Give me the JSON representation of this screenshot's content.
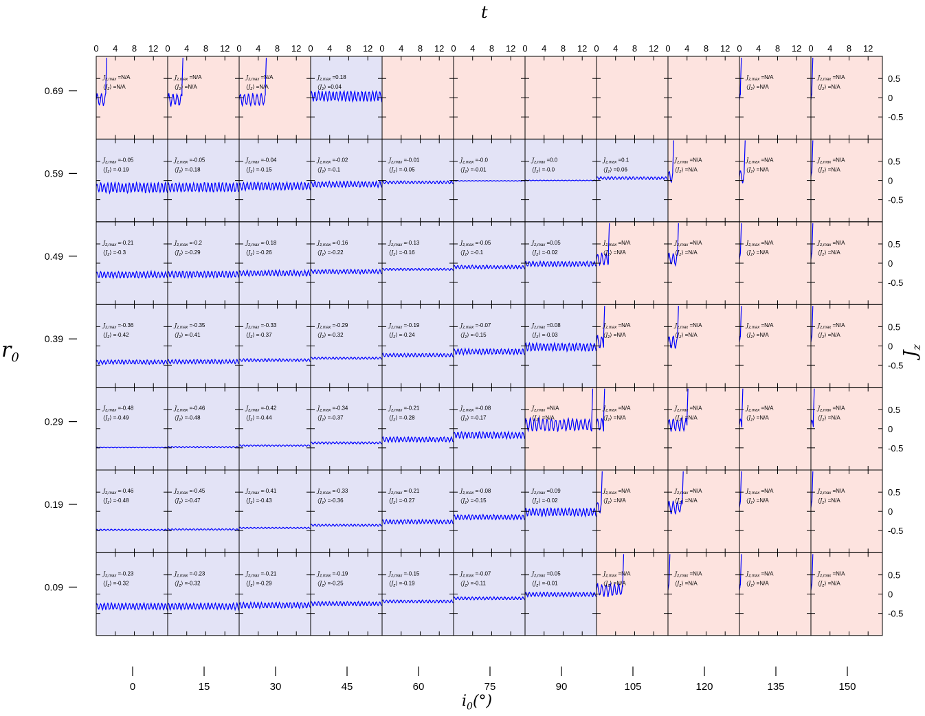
{
  "axes": {
    "top_label": "t",
    "left_label": "r",
    "left_label_sub": "0",
    "right_label": "J",
    "right_label_sub": "z",
    "bottom_label": "i",
    "bottom_label_sub": "0",
    "bottom_label_unit": "(°)",
    "t_ticks": [
      "0",
      "4",
      "8",
      "12"
    ],
    "jz_ticks": [
      "0.5",
      "0",
      "-0.5"
    ]
  },
  "colors": {
    "stable": "#e3e3f6",
    "unstable": "#fde3df",
    "line": "#0000ff",
    "frame": "#000000"
  },
  "chart_data": {
    "type": "line",
    "description_grid": "small multiples of Jz(t), rows r0, columns i0",
    "x_range": [
      0,
      15
    ],
    "y_range": [
      -1,
      1
    ],
    "t_ticks": [
      0,
      4,
      8,
      12
    ],
    "jz_ticks": [
      0.5,
      0,
      -0.5
    ],
    "i0_values": [
      "0",
      "15",
      "30",
      "45",
      "60",
      "75",
      "90",
      "105",
      "120",
      "135",
      "150"
    ],
    "r0_values": [
      "0.69",
      "0.59",
      "0.49",
      "0.39",
      "0.29",
      "0.19",
      "0.09"
    ],
    "jzmax_prefix": "J",
    "jzmax_sub": "z,max",
    "jzavg_prefix": "⟨J",
    "jzavg_sub": "z",
    "jzavg_suffix": "⟩",
    "eq": " =",
    "cells": [
      [
        {
          "stable": false,
          "jmax": "N/A",
          "javg": "N/A"
        },
        {
          "stable": false,
          "jmax": "N/A",
          "javg": "N/A"
        },
        {
          "stable": false,
          "jmax": "N/A",
          "javg": "N/A"
        },
        {
          "stable": true,
          "jmax": "0.18",
          "javg": "0.04"
        },
        {
          "stable": false,
          "jmax": "",
          "javg": ""
        },
        {
          "stable": false,
          "jmax": "",
          "javg": ""
        },
        {
          "stable": false,
          "jmax": "",
          "javg": ""
        },
        {
          "stable": false,
          "jmax": "",
          "javg": ""
        },
        {
          "stable": false,
          "jmax": "",
          "javg": ""
        },
        {
          "stable": false,
          "jmax": "N/A",
          "javg": "N/A"
        },
        {
          "stable": false,
          "jmax": "N/A",
          "javg": "N/A"
        }
      ],
      [
        {
          "stable": true,
          "jmax": "-0.05",
          "javg": "-0.19"
        },
        {
          "stable": true,
          "jmax": "-0.05",
          "javg": "-0.18"
        },
        {
          "stable": true,
          "jmax": "-0.04",
          "javg": "-0.15"
        },
        {
          "stable": true,
          "jmax": "-0.02",
          "javg": "-0.1"
        },
        {
          "stable": true,
          "jmax": "-0.01",
          "javg": "-0.05"
        },
        {
          "stable": true,
          "jmax": "-0.0",
          "javg": "-0.01"
        },
        {
          "stable": true,
          "jmax": "0.0",
          "javg": "-0.0"
        },
        {
          "stable": true,
          "jmax": "0.1",
          "javg": "0.06"
        },
        {
          "stable": false,
          "jmax": "N/A",
          "javg": "N/A"
        },
        {
          "stable": false,
          "jmax": "N/A",
          "javg": "N/A"
        },
        {
          "stable": false,
          "jmax": "N/A",
          "javg": "N/A"
        }
      ],
      [
        {
          "stable": true,
          "jmax": "-0.21",
          "javg": "-0.3"
        },
        {
          "stable": true,
          "jmax": "-0.2",
          "javg": "-0.29"
        },
        {
          "stable": true,
          "jmax": "-0.18",
          "javg": "-0.26"
        },
        {
          "stable": true,
          "jmax": "-0.16",
          "javg": "-0.22"
        },
        {
          "stable": true,
          "jmax": "-0.13",
          "javg": "-0.16"
        },
        {
          "stable": true,
          "jmax": "-0.05",
          "javg": "-0.1"
        },
        {
          "stable": true,
          "jmax": "0.05",
          "javg": "-0.02"
        },
        {
          "stable": false,
          "jmax": "N/A",
          "javg": "N/A"
        },
        {
          "stable": false,
          "jmax": "N/A",
          "javg": "N/A"
        },
        {
          "stable": false,
          "jmax": "N/A",
          "javg": "N/A"
        },
        {
          "stable": false,
          "jmax": "N/A",
          "javg": "N/A"
        }
      ],
      [
        {
          "stable": true,
          "jmax": "-0.36",
          "javg": "-0.42"
        },
        {
          "stable": true,
          "jmax": "-0.35",
          "javg": "-0.41"
        },
        {
          "stable": true,
          "jmax": "-0.33",
          "javg": "-0.37"
        },
        {
          "stable": true,
          "jmax": "-0.29",
          "javg": "-0.32"
        },
        {
          "stable": true,
          "jmax": "-0.19",
          "javg": "-0.24"
        },
        {
          "stable": true,
          "jmax": "-0.07",
          "javg": "-0.15"
        },
        {
          "stable": true,
          "jmax": "0.08",
          "javg": "-0.03"
        },
        {
          "stable": false,
          "jmax": "N/A",
          "javg": "N/A"
        },
        {
          "stable": false,
          "jmax": "N/A",
          "javg": "N/A"
        },
        {
          "stable": false,
          "jmax": "N/A",
          "javg": "N/A"
        },
        {
          "stable": false,
          "jmax": "N/A",
          "javg": "N/A"
        }
      ],
      [
        {
          "stable": true,
          "jmax": "-0.48",
          "javg": "-0.49"
        },
        {
          "stable": true,
          "jmax": "-0.46",
          "javg": "-0.48"
        },
        {
          "stable": true,
          "jmax": "-0.42",
          "javg": "-0.44"
        },
        {
          "stable": true,
          "jmax": "-0.34",
          "javg": "-0.37"
        },
        {
          "stable": true,
          "jmax": "-0.21",
          "javg": "-0.28"
        },
        {
          "stable": true,
          "jmax": "-0.08",
          "javg": "-0.17"
        },
        {
          "stable": false,
          "jmax": "N/A",
          "javg": "N/A"
        },
        {
          "stable": false,
          "jmax": "N/A",
          "javg": "N/A"
        },
        {
          "stable": false,
          "jmax": "N/A",
          "javg": "N/A"
        },
        {
          "stable": false,
          "jmax": "N/A",
          "javg": "N/A"
        },
        {
          "stable": false,
          "jmax": "N/A",
          "javg": "N/A"
        }
      ],
      [
        {
          "stable": true,
          "jmax": "-0.46",
          "javg": "-0.48"
        },
        {
          "stable": true,
          "jmax": "-0.45",
          "javg": "-0.47"
        },
        {
          "stable": true,
          "jmax": "-0.41",
          "javg": "-0.43"
        },
        {
          "stable": true,
          "jmax": "-0.33",
          "javg": "-0.36"
        },
        {
          "stable": true,
          "jmax": "-0.21",
          "javg": "-0.27"
        },
        {
          "stable": true,
          "jmax": "-0.08",
          "javg": "-0.15"
        },
        {
          "stable": true,
          "jmax": "0.09",
          "javg": "-0.02"
        },
        {
          "stable": false,
          "jmax": "N/A",
          "javg": "N/A"
        },
        {
          "stable": false,
          "jmax": "N/A",
          "javg": "N/A"
        },
        {
          "stable": false,
          "jmax": "N/A",
          "javg": "N/A"
        },
        {
          "stable": false,
          "jmax": "N/A",
          "javg": "N/A"
        }
      ],
      [
        {
          "stable": true,
          "jmax": "-0.23",
          "javg": "-0.32"
        },
        {
          "stable": true,
          "jmax": "-0.23",
          "javg": "-0.32"
        },
        {
          "stable": true,
          "jmax": "-0.21",
          "javg": "-0.29"
        },
        {
          "stable": true,
          "jmax": "-0.19",
          "javg": "-0.25"
        },
        {
          "stable": true,
          "jmax": "-0.15",
          "javg": "-0.19"
        },
        {
          "stable": true,
          "jmax": "-0.07",
          "javg": "-0.11"
        },
        {
          "stable": true,
          "jmax": "0.05",
          "javg": "-0.01"
        },
        {
          "stable": false,
          "jmax": "N/A",
          "javg": "N/A"
        },
        {
          "stable": false,
          "jmax": "N/A",
          "javg": "N/A"
        },
        {
          "stable": false,
          "jmax": "N/A",
          "javg": "N/A"
        },
        {
          "stable": false,
          "jmax": "N/A",
          "javg": "N/A"
        }
      ]
    ],
    "escape_time": [
      [
        2,
        3,
        5.5,
        null,
        null,
        null,
        null,
        null,
        null,
        0.2,
        0.2
      ],
      [
        null,
        null,
        null,
        null,
        null,
        null,
        null,
        null,
        1,
        1,
        0.2
      ],
      [
        null,
        null,
        null,
        null,
        null,
        null,
        null,
        2.5,
        2,
        0.2,
        0.2
      ],
      [
        null,
        null,
        null,
        null,
        null,
        null,
        null,
        1.5,
        2,
        0.2,
        0.2
      ],
      [
        null,
        null,
        null,
        null,
        null,
        null,
        14,
        1.5,
        4,
        0.5,
        0.5
      ],
      [
        null,
        null,
        null,
        null,
        null,
        null,
        null,
        1,
        3,
        0.2,
        0.2
      ],
      [
        null,
        null,
        null,
        null,
        null,
        null,
        null,
        5.5,
        0.2,
        0.2,
        0.2
      ]
    ]
  }
}
